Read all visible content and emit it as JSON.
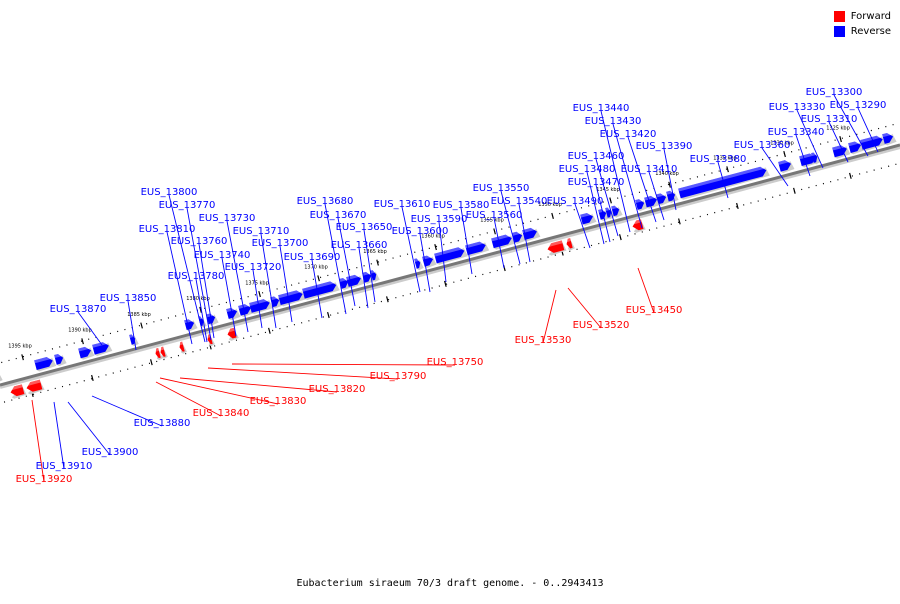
{
  "legend": [
    {
      "label": "Forward",
      "color": "#ff0000"
    },
    {
      "label": "Reverse",
      "color": "#0000ff"
    }
  ],
  "caption": "Eubacterium siraeum 70/3 draft genome. - 0..2943413",
  "colors": {
    "forward": "#ff0000",
    "reverse": "#0000ff",
    "backbone": "#777777"
  },
  "scale": {
    "ticks": [
      "1395 kbp",
      "1390 kbp",
      "1385 kbp",
      "1380 kbp",
      "1375 kbp",
      "1370 kbp",
      "1365 kbp",
      "1360 kbp",
      "1355 kbp",
      "1350 kbp",
      "1345 kbp",
      "1340 kbp",
      "1335 kbp",
      "1330 kbp",
      "1325 kbp"
    ]
  },
  "reverse_genes": [
    "EUS_13290",
    "EUS_13300",
    "EUS_13310",
    "EUS_13330",
    "EUS_13340",
    "EUS_13360",
    "EUS_13380",
    "EUS_13390",
    "EUS_13410",
    "EUS_13420",
    "EUS_13430",
    "EUS_13440",
    "EUS_13460",
    "EUS_13470",
    "EUS_13480",
    "EUS_13490",
    "EUS_13540",
    "EUS_13550",
    "EUS_13560",
    "EUS_13580",
    "EUS_13590",
    "EUS_13600",
    "EUS_13610",
    "EUS_13650",
    "EUS_13660",
    "EUS_13670",
    "EUS_13680",
    "EUS_13690",
    "EUS_13700",
    "EUS_13710",
    "EUS_13720",
    "EUS_13730",
    "EUS_13740",
    "EUS_13760",
    "EUS_13770",
    "EUS_13780",
    "EUS_13800",
    "EUS_13810",
    "EUS_13850",
    "EUS_13870",
    "EUS_13880",
    "EUS_13900",
    "EUS_13910"
  ],
  "forward_genes": [
    "EUS_13450",
    "EUS_13520",
    "EUS_13530",
    "EUS_13750",
    "EUS_13790",
    "EUS_13820",
    "EUS_13830",
    "EUS_13840",
    "EUS_13920"
  ]
}
